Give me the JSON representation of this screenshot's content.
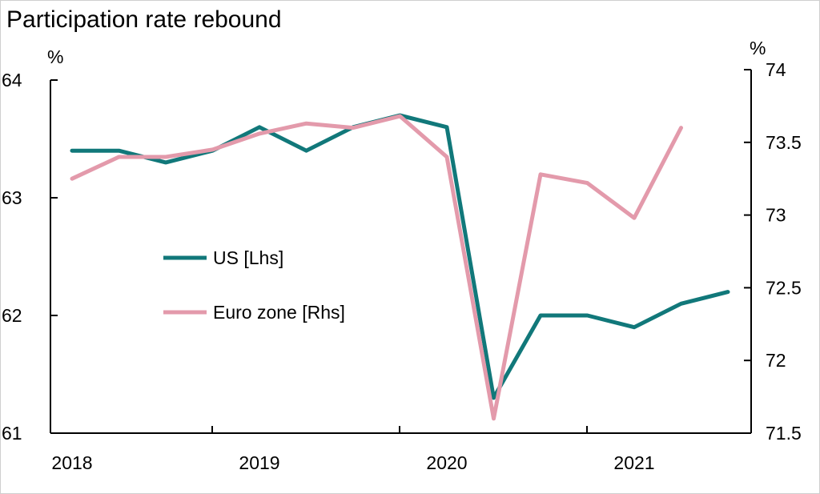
{
  "chart_data": {
    "type": "line",
    "title": "Participation rate rebound",
    "left_axis": {
      "unit": "%",
      "ylim": [
        61,
        64
      ],
      "ticks": [
        61,
        62,
        63,
        64
      ],
      "tick_labels": [
        "61",
        "62",
        "63",
        "64"
      ]
    },
    "right_axis": {
      "unit": "%",
      "ylim": [
        71.5,
        74
      ],
      "ticks": [
        71.5,
        72,
        72.5,
        73,
        73.5,
        74
      ],
      "tick_labels": [
        "71.5",
        "72",
        "72.5",
        "73",
        "73.5",
        "74"
      ]
    },
    "x_axis": {
      "year_ticks": [
        2018,
        2019,
        2020,
        2021
      ],
      "tick_labels": [
        "2018",
        "2019",
        "2020",
        "2021"
      ],
      "xlim": [
        2018,
        2021.6
      ]
    },
    "legend": {
      "placement": "center-left"
    },
    "series": [
      {
        "name": "US [Lhs]",
        "axis": "left",
        "color": "#11787a",
        "x": [
          2018.0,
          2018.25,
          2018.5,
          2018.75,
          2019.0,
          2019.25,
          2019.5,
          2019.75,
          2020.0,
          2020.25,
          2020.5,
          2020.75,
          2021.0,
          2021.25,
          2021.5
        ],
        "values": [
          63.4,
          63.4,
          63.3,
          63.4,
          63.6,
          63.4,
          63.6,
          63.7,
          63.6,
          61.3,
          62.0,
          62.0,
          61.9,
          62.1,
          62.2
        ]
      },
      {
        "name": "Euro zone [Rhs]",
        "axis": "right",
        "color": "#e39aab",
        "x": [
          2018.0,
          2018.25,
          2018.5,
          2018.75,
          2019.0,
          2019.25,
          2019.5,
          2019.75,
          2020.0,
          2020.25,
          2020.5,
          2020.75,
          2021.0,
          2021.25
        ],
        "values": [
          73.25,
          73.4,
          73.4,
          73.45,
          73.56,
          73.63,
          73.6,
          73.68,
          73.4,
          71.6,
          73.28,
          73.22,
          72.98,
          73.6
        ]
      }
    ]
  }
}
